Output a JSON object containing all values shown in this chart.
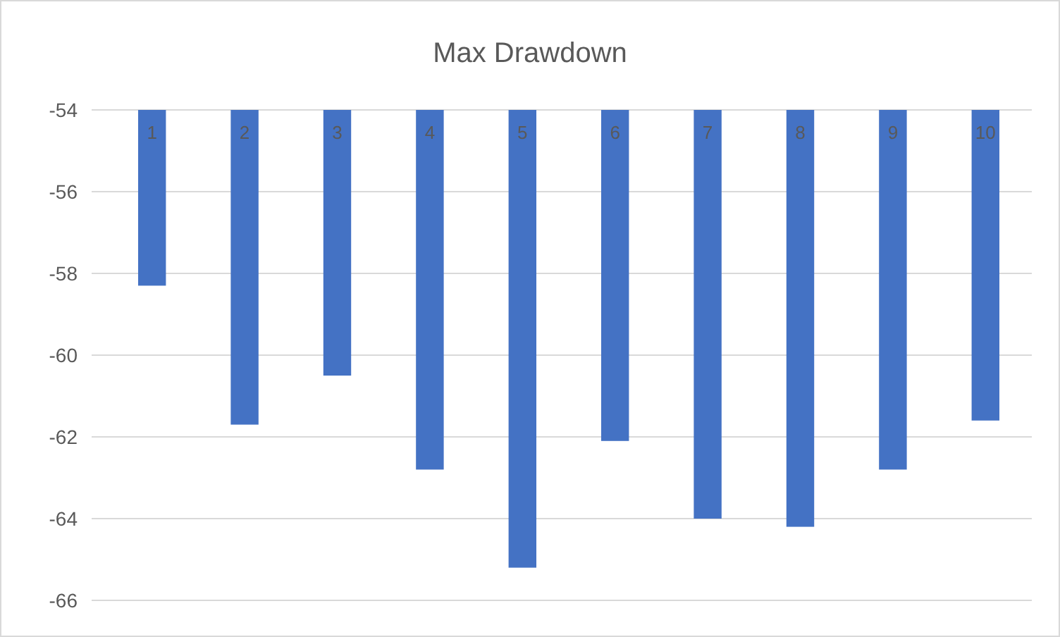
{
  "chart_data": {
    "type": "bar",
    "title": "Max Drawdown",
    "categories": [
      "1",
      "2",
      "3",
      "4",
      "5",
      "6",
      "7",
      "8",
      "9",
      "10"
    ],
    "values": [
      -58.3,
      -61.7,
      -60.5,
      -62.8,
      -65.2,
      -62.1,
      -64.0,
      -64.2,
      -62.8,
      -61.6
    ],
    "color": "#4472c4",
    "ylim": [
      -66,
      -54
    ],
    "yticks": [
      -66,
      -64,
      -62,
      -60,
      -58,
      -56,
      -54
    ],
    "grid": "y"
  }
}
